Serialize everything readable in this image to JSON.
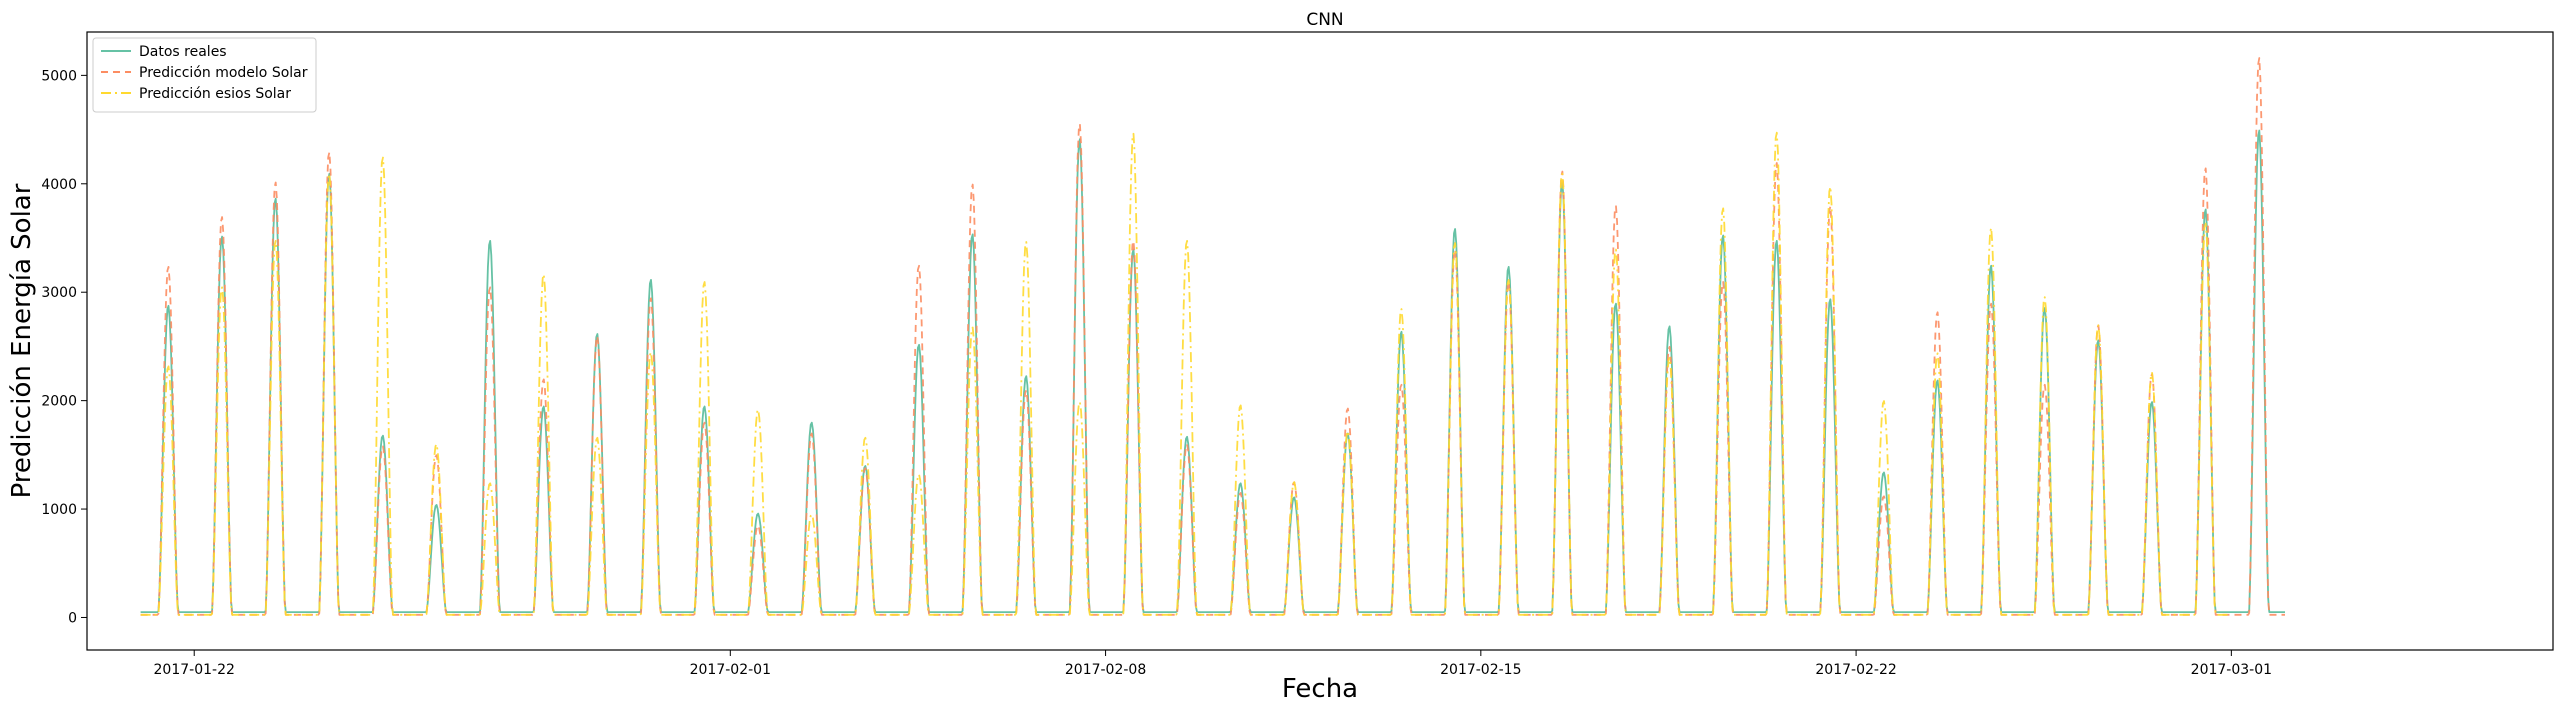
{
  "chart_data": {
    "type": "line",
    "title": "CNN",
    "xlabel": "Fecha",
    "ylabel": "Predicción Energía Solar",
    "xlim": [
      "2017-01-20",
      "2017-03-07"
    ],
    "ylim": [
      -300,
      5400
    ],
    "x_ticks": [
      "2017-01-22",
      "2017-02-01",
      "2017-02-08",
      "2017-02-15",
      "2017-02-22",
      "2017-03-01"
    ],
    "y_ticks": [
      0,
      1000,
      2000,
      3000,
      4000,
      5000
    ],
    "grid": false,
    "legend_position": "upper-left",
    "day_start": "2017-01-21",
    "series": [
      {
        "name": "Datos reales",
        "color": "#66c2a5",
        "style": "solid",
        "daily_peaks": [
          2880,
          3520,
          3870,
          4100,
          1680,
          1040,
          3480,
          1950,
          2620,
          3120,
          1950,
          960,
          1800,
          1400,
          2520,
          3540,
          2230,
          4420,
          3400,
          1670,
          1240,
          1110,
          1700,
          2640,
          3590,
          3240,
          4020,
          2900,
          2690,
          3530,
          3480,
          2940,
          1340,
          2190,
          3250,
          2860,
          2560,
          1990,
          3770,
          4500
        ]
      },
      {
        "name": "Predicción modelo Solar",
        "color": "#fc8d62",
        "style": "dashed",
        "daily_peaks": [
          3240,
          3700,
          4020,
          4300,
          1580,
          1500,
          3050,
          2200,
          2600,
          2950,
          1800,
          850,
          1700,
          1380,
          3250,
          4000,
          2100,
          4560,
          3480,
          1600,
          1150,
          1250,
          1930,
          2150,
          3400,
          3100,
          4120,
          3800,
          2500,
          3100,
          4200,
          3800,
          1120,
          2820,
          2900,
          2150,
          2700,
          2250,
          4150,
          5170
        ]
      },
      {
        "name": "Predicción esios Solar",
        "color": "#ffd92f",
        "style": "dashdot",
        "daily_peaks": [
          2320,
          3050,
          3480,
          4100,
          4250,
          1600,
          1240,
          3170,
          1660,
          2450,
          3100,
          1920,
          950,
          1660,
          1320,
          2680,
          3470,
          1990,
          4470,
          3480,
          1960,
          1250,
          1720,
          2850,
          3460,
          3120,
          4100,
          3400,
          2400,
          3780,
          4480,
          3980,
          2000,
          2440,
          3600,
          2960,
          2700,
          2260,
          3640
        ]
      }
    ]
  }
}
